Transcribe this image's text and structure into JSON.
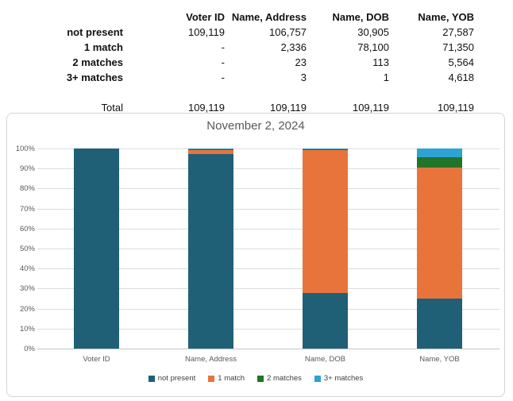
{
  "table": {
    "columns": [
      "Voter ID",
      "Name, Address",
      "Name, DOB",
      "Name, YOB"
    ],
    "rows": [
      {
        "label": "not present",
        "values": [
          "109,119",
          "106,757",
          "30,905",
          "27,587"
        ]
      },
      {
        "label": "1 match",
        "values": [
          "-",
          "2,336",
          "78,100",
          "71,350"
        ]
      },
      {
        "label": "2 matches",
        "values": [
          "-",
          "23",
          "113",
          "5,564"
        ]
      },
      {
        "label": "3+ matches",
        "values": [
          "-",
          "3",
          "1",
          "4,618"
        ]
      }
    ],
    "total_label": "Total",
    "total_values": [
      "109,119",
      "109,119",
      "109,119",
      "109,119"
    ]
  },
  "chart_data": {
    "type": "bar",
    "stacked": true,
    "normalized": "percent",
    "title": "November 2, 2024",
    "categories": [
      "Voter ID",
      "Name, Address",
      "Name, DOB",
      "Name, YOB"
    ],
    "series": [
      {
        "name": "not present",
        "color": "#206076",
        "values": [
          109119,
          106757,
          30905,
          27587
        ]
      },
      {
        "name": "1 match",
        "color": "#E8743C",
        "values": [
          0,
          2336,
          78100,
          71350
        ]
      },
      {
        "name": "2 matches",
        "color": "#217428",
        "values": [
          0,
          23,
          113,
          5564
        ]
      },
      {
        "name": "3+ matches",
        "color": "#2EA3D6",
        "values": [
          0,
          3,
          1,
          4618
        ]
      }
    ],
    "column_total": 109119,
    "y_ticks": [
      "100%",
      "90%",
      "80%",
      "70%",
      "60%",
      "50%",
      "40%",
      "30%",
      "20%",
      "10%",
      "0%"
    ],
    "ylim": [
      0,
      1
    ],
    "grid": true,
    "legend_position": "bottom"
  },
  "colors": {
    "gridline": "#dcdcdc",
    "axis_line": "#c4c4c4",
    "axis_text": "#595959",
    "title_text": "#595959",
    "legend_text": "#404040",
    "chart_border": "#d4d4d4"
  }
}
